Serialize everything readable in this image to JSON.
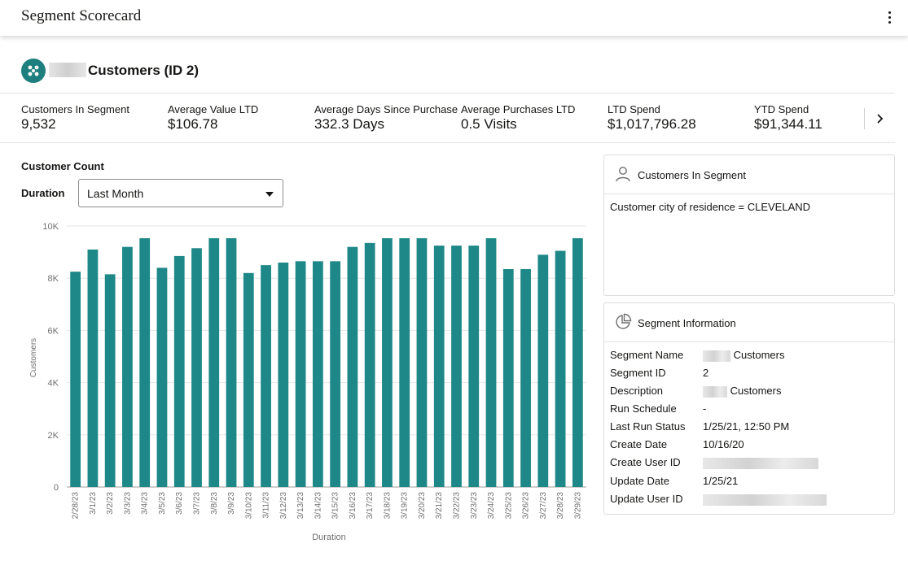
{
  "header": {
    "title": "Segment Scorecard"
  },
  "segment": {
    "title": "Customers (ID 2)",
    "accent": "#1e7f7f"
  },
  "metrics": [
    {
      "label": "Customers In Segment",
      "value": "9,532"
    },
    {
      "label": "Average Value LTD",
      "value": "$106.78"
    },
    {
      "label": "Average Days Since Purchase",
      "value": "332.3 Days"
    },
    {
      "label": "Average Purchases LTD",
      "value": "0.5 Visits"
    },
    {
      "label": "LTD Spend",
      "value": "$1,017,796.28"
    },
    {
      "label": "YTD Spend",
      "value": "$91,344.11"
    }
  ],
  "customer_count": {
    "title": "Customer Count",
    "duration_label": "Duration",
    "duration_value": "Last Month"
  },
  "chart_data": {
    "type": "bar",
    "categories": [
      "2/28/23",
      "3/1/23",
      "3/2/23",
      "3/3/23",
      "3/4/23",
      "3/5/23",
      "3/6/23",
      "3/7/23",
      "3/8/23",
      "3/9/23",
      "3/10/23",
      "3/11/23",
      "3/12/23",
      "3/13/23",
      "3/14/23",
      "3/15/23",
      "3/16/23",
      "3/17/23",
      "3/18/23",
      "3/19/23",
      "3/20/23",
      "3/21/23",
      "3/22/23",
      "3/23/23",
      "3/24/23",
      "3/25/23",
      "3/26/23",
      "3/27/23",
      "3/28/23",
      "3/29/23"
    ],
    "values": [
      8250,
      9100,
      8150,
      9200,
      9532,
      8400,
      8850,
      9150,
      9532,
      9532,
      8200,
      8500,
      8600,
      8650,
      8650,
      8650,
      9200,
      9350,
      9532,
      9532,
      9532,
      9250,
      9250,
      9250,
      9532,
      8350,
      8350,
      8900,
      9050,
      9532
    ],
    "xlabel": "Duration",
    "ylabel": "Customers",
    "ylim": [
      0,
      10000
    ],
    "yticks": [
      "0",
      "2K",
      "4K",
      "6K",
      "8K",
      "10K"
    ],
    "grid": true,
    "color": "#1e8787"
  },
  "panel_customers": {
    "title": "Customers In Segment",
    "condition": "Customer city of residence = CLEVELAND"
  },
  "panel_info": {
    "title": "Segment Information",
    "rows": [
      {
        "k": "Segment Name",
        "v": "Customers"
      },
      {
        "k": "Segment ID",
        "v": "2"
      },
      {
        "k": "Description",
        "v": "Customers"
      },
      {
        "k": "Run Schedule",
        "v": "-"
      },
      {
        "k": "Last Run Status",
        "v": "1/25/21, 12:50 PM"
      },
      {
        "k": "Create Date",
        "v": "10/16/20"
      },
      {
        "k": "Create User ID",
        "v": ""
      },
      {
        "k": "Update Date",
        "v": "1/25/21"
      },
      {
        "k": "Update User ID",
        "v": ""
      }
    ]
  }
}
